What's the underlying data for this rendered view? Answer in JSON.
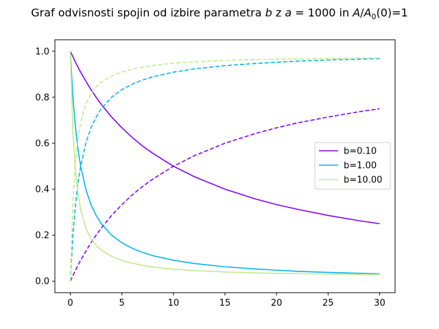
{
  "chart_data": {
    "type": "line",
    "title": {
      "prefix": "Graf odvisnosti spojin od izbire parametra ",
      "b": "b",
      "z": " z ",
      "a_expr": "a",
      "eq_value": " = 1000",
      "in": " in ",
      "A": "A",
      "slash": "/",
      "A0": "A",
      "sub0": "0",
      "suffix": "(0)=1"
    },
    "xlabel": "",
    "ylabel": "",
    "xlim": [
      -1.5,
      31.5
    ],
    "ylim": [
      -0.05,
      1.05
    ],
    "xticks": [
      0,
      5,
      10,
      15,
      20,
      25,
      30
    ],
    "yticks": [
      0.0,
      0.2,
      0.4,
      0.6,
      0.8,
      1.0
    ],
    "xtick_labels": [
      "0",
      "5",
      "10",
      "15",
      "20",
      "25",
      "30"
    ],
    "ytick_labels": [
      "0.0",
      "0.2",
      "0.4",
      "0.6",
      "0.8",
      "1.0"
    ],
    "grid": false,
    "legend_position": "center-right",
    "x": [
      0,
      0.25,
      0.5,
      0.75,
      1,
      1.5,
      2,
      2.5,
      3,
      4,
      5,
      6,
      7,
      8,
      10,
      12,
      15,
      18,
      20,
      22,
      25,
      28,
      30
    ],
    "series": [
      {
        "name": "b=0.10",
        "color": "#8000ff",
        "solid_values": [
          1.0,
          0.976,
          0.952,
          0.93,
          0.909,
          0.87,
          0.833,
          0.8,
          0.769,
          0.714,
          0.667,
          0.625,
          0.588,
          0.556,
          0.5,
          0.455,
          0.4,
          0.357,
          0.333,
          0.313,
          0.286,
          0.263,
          0.25
        ],
        "dashed_values": [
          0.0,
          0.024,
          0.048,
          0.07,
          0.091,
          0.13,
          0.167,
          0.2,
          0.231,
          0.286,
          0.333,
          0.375,
          0.412,
          0.444,
          0.5,
          0.545,
          0.6,
          0.643,
          0.667,
          0.688,
          0.714,
          0.737,
          0.75
        ]
      },
      {
        "name": "b=1.00",
        "color": "#00b5eb",
        "solid_values": [
          1.0,
          0.8,
          0.667,
          0.571,
          0.5,
          0.4,
          0.333,
          0.286,
          0.25,
          0.2,
          0.167,
          0.143,
          0.125,
          0.111,
          0.091,
          0.077,
          0.0625,
          0.053,
          0.048,
          0.043,
          0.038,
          0.0345,
          0.032
        ],
        "dashed_values": [
          0.0,
          0.2,
          0.333,
          0.429,
          0.5,
          0.6,
          0.667,
          0.714,
          0.75,
          0.8,
          0.833,
          0.857,
          0.875,
          0.889,
          0.909,
          0.923,
          0.9375,
          0.947,
          0.952,
          0.957,
          0.962,
          0.9655,
          0.968
        ]
      },
      {
        "name": "b=10.00",
        "color": "#c0eb8d",
        "solid_values": [
          1.0,
          0.65,
          0.48,
          0.38,
          0.31,
          0.23,
          0.185,
          0.155,
          0.135,
          0.108,
          0.09,
          0.078,
          0.069,
          0.062,
          0.052,
          0.046,
          0.04,
          0.036,
          0.034,
          0.033,
          0.031,
          0.03,
          0.029
        ],
        "dashed_values": [
          0.0,
          0.35,
          0.52,
          0.62,
          0.69,
          0.77,
          0.815,
          0.845,
          0.865,
          0.892,
          0.91,
          0.922,
          0.931,
          0.938,
          0.948,
          0.954,
          0.96,
          0.964,
          0.966,
          0.967,
          0.969,
          0.97,
          0.971
        ]
      }
    ]
  }
}
